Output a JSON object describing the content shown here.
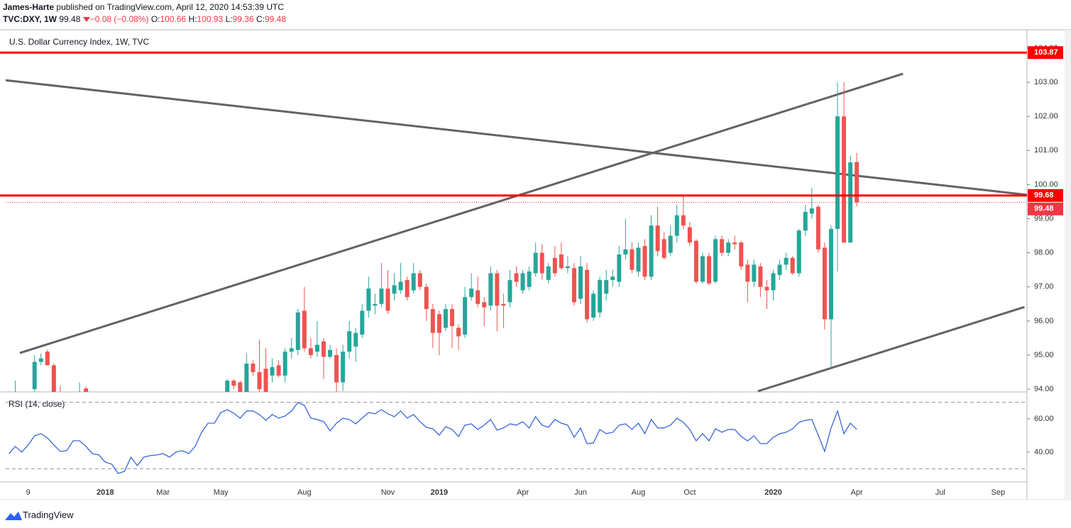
{
  "header": {
    "author": "James-Harte",
    "published": "published on TradingView.com, April 12, 2020 14:53:39 UTC",
    "symbol": "TVC:DXY, 1W",
    "change": "−0.08 (−0.08%)",
    "ohlc_labels": [
      "O:",
      "H:",
      "L:",
      "C:"
    ],
    "brand": "TradingView"
  },
  "chart_data": {
    "type": "candlestick",
    "title": "U.S. Dollar Currency Index, 1W, TVC",
    "categories": [
      null,
      null,
      null,
      "9",
      null,
      null,
      null,
      null,
      null,
      null,
      null,
      null,
      null,
      null,
      null,
      "2018",
      null,
      null,
      null,
      null,
      null,
      null,
      null,
      null,
      "Mar",
      null,
      null,
      null,
      null,
      null,
      null,
      null,
      null,
      "May",
      null,
      null,
      null,
      null,
      null,
      null,
      null,
      null,
      null,
      null,
      null,
      null,
      "Aug",
      null,
      null,
      null,
      null,
      null,
      null,
      null,
      null,
      null,
      null,
      null,
      null,
      "Nov",
      null,
      null,
      null,
      null,
      null,
      null,
      null,
      "2019",
      null,
      null,
      null,
      null,
      null,
      null,
      null,
      null,
      null,
      null,
      null,
      null,
      "Apr",
      null,
      null,
      null,
      null,
      null,
      null,
      null,
      null,
      "Jun",
      null,
      null,
      null,
      null,
      null,
      null,
      null,
      null,
      "Aug",
      null,
      null,
      null,
      null,
      null,
      null,
      null,
      "Oct",
      null,
      null,
      null,
      null,
      null,
      null,
      null,
      null,
      null,
      null,
      null,
      null,
      "2020",
      null,
      null,
      null,
      null,
      null,
      null,
      null,
      null,
      null,
      null,
      null,
      null,
      "Apr",
      null,
      null,
      null,
      null,
      null,
      null,
      null,
      null,
      null,
      null,
      null,
      null,
      "Jul",
      null,
      null,
      null,
      null,
      null,
      null,
      null,
      null,
      "Sep",
      null,
      null,
      null,
      null
    ],
    "open": [
      null,
      93.6,
      null,
      null,
      94.0,
      94.8,
      95.1,
      94.7,
      93.7,
      null,
      null,
      93.6,
      94.02,
      null,
      null,
      null,
      null,
      null,
      null,
      null,
      null,
      null,
      null,
      null,
      null,
      null,
      null,
      null,
      null,
      null,
      null,
      null,
      null,
      null,
      93.8,
      94.25,
      94.2,
      93.9,
      94.75,
      94.5,
      94.6,
      94.4,
      94.7,
      94.4,
      95.1,
      95.15,
      96.3,
      95.2,
      95.1,
      95.4,
      94.95,
      95.0,
      94.2,
      95.1,
      95.25,
      95.6,
      96.3,
      96.45,
      96.5,
      96.95,
      96.8,
      96.9,
      97.2,
      96.9,
      97.4,
      97.0,
      96.35,
      96.2,
      95.8,
      96.35,
      95.8,
      95.6,
      96.7,
      96.9,
      96.55,
      96.45,
      97.4,
      96.5,
      96.55,
      97.4,
      96.9,
      97.0,
      97.4,
      98.0,
      97.2,
      97.85,
      97.95,
      97.55,
      97.55,
      96.65,
      97.5,
      96.1,
      96.25,
      96.8,
      97.2,
      97.15,
      97.95,
      98.1,
      97.45,
      98.2,
      97.3,
      98.8,
      98.4,
      98.0,
      98.5,
      99.1,
      98.75,
      98.35,
      97.15,
      97.9,
      97.15,
      98.4,
      98.0,
      98.3,
      98.3,
      97.65,
      97.15,
      97.6,
      97.0,
      96.9,
      97.35,
      97.65,
      97.85,
      97.4,
      98.65,
      99.15,
      99.35,
      98.15,
      96.05,
      98.7,
      102.0,
      98.3,
      100.66,
      null,
      null,
      null,
      null,
      null,
      null,
      null,
      null,
      null,
      null,
      null,
      null,
      null,
      null,
      null,
      null,
      null,
      null,
      null,
      null,
      null,
      null,
      null,
      null,
      null,
      null
    ],
    "high": [
      null,
      94.25,
      null,
      null,
      95.0,
      95.05,
      95.16,
      94.75,
      94.1,
      null,
      null,
      94.2,
      94.08,
      null,
      null,
      null,
      null,
      null,
      null,
      null,
      null,
      null,
      null,
      null,
      null,
      null,
      null,
      null,
      null,
      null,
      null,
      null,
      null,
      null,
      94.3,
      94.3,
      94.25,
      95.05,
      94.85,
      95.45,
      95.2,
      94.9,
      94.85,
      95.2,
      95.5,
      96.35,
      97.0,
      95.5,
      96.0,
      95.5,
      95.3,
      95.2,
      95.3,
      96.0,
      95.8,
      96.5,
      97.3,
      96.8,
      97.7,
      97.5,
      97.4,
      97.7,
      97.3,
      97.7,
      97.5,
      97.1,
      96.5,
      96.3,
      96.5,
      96.5,
      95.9,
      97.0,
      97.4,
      97.3,
      96.7,
      97.6,
      97.5,
      96.8,
      97.5,
      97.6,
      97.5,
      97.6,
      98.3,
      98.25,
      97.7,
      98.2,
      98.3,
      97.9,
      97.7,
      97.9,
      97.7,
      96.9,
      97.3,
      97.5,
      97.5,
      98.2,
      99.0,
      98.3,
      98.3,
      98.4,
      99.1,
      99.35,
      98.6,
      98.8,
      99.4,
      99.7,
      98.9,
      98.4,
      98.0,
      98.0,
      98.5,
      98.5,
      98.4,
      98.5,
      98.35,
      97.8,
      97.8,
      97.7,
      97.2,
      97.5,
      97.8,
      98.0,
      97.9,
      98.7,
      99.4,
      99.9,
      99.4,
      98.3,
      98.8,
      103.0,
      103.0,
      100.85,
      100.93,
      null,
      null,
      null,
      null,
      null,
      null,
      null,
      null,
      null,
      null,
      null,
      null,
      null,
      null,
      null,
      null,
      null,
      null,
      null,
      null,
      null,
      null,
      null,
      null,
      null,
      null
    ],
    "low": [
      null,
      93.3,
      null,
      null,
      93.7,
      94.7,
      94.7,
      93.6,
      93.2,
      null,
      null,
      93.3,
      93.5,
      null,
      null,
      null,
      null,
      null,
      null,
      null,
      null,
      null,
      null,
      null,
      null,
      null,
      null,
      null,
      null,
      null,
      null,
      null,
      null,
      null,
      93.5,
      94.0,
      93.5,
      93.8,
      94.4,
      93.8,
      93.8,
      94.2,
      94.35,
      94.2,
      94.9,
      95.0,
      95.1,
      94.9,
      94.95,
      94.3,
      94.9,
      93.9,
      93.95,
      94.9,
      94.8,
      95.5,
      96.1,
      96.2,
      96.4,
      96.2,
      96.6,
      96.8,
      96.6,
      96.8,
      96.9,
      96.0,
      95.2,
      95.0,
      95.7,
      95.2,
      95.15,
      95.5,
      96.6,
      96.4,
      95.85,
      96.3,
      95.7,
      95.8,
      96.4,
      97.0,
      96.8,
      96.9,
      97.3,
      97.2,
      97.1,
      97.3,
      97.5,
      97.4,
      96.45,
      96.5,
      95.95,
      96.0,
      96.1,
      96.6,
      97.0,
      97.0,
      97.8,
      97.4,
      97.3,
      97.2,
      97.2,
      97.9,
      97.8,
      97.9,
      98.3,
      98.7,
      98.2,
      97.1,
      97.1,
      97.05,
      97.1,
      97.9,
      97.9,
      98.1,
      97.5,
      96.55,
      97.0,
      96.7,
      96.35,
      96.6,
      97.2,
      97.5,
      97.35,
      97.3,
      98.5,
      99.0,
      98.0,
      95.75,
      94.65,
      97.45,
      98.3,
      98.3,
      99.36,
      null,
      null,
      null,
      null,
      null,
      null,
      null,
      null,
      null,
      null,
      null,
      null,
      null,
      null,
      null,
      null,
      null,
      null,
      null,
      null,
      null,
      null,
      null,
      null,
      null,
      null
    ],
    "close": [
      null,
      93.9,
      null,
      null,
      94.8,
      94.9,
      94.7,
      93.7,
      93.5,
      null,
      null,
      93.8,
      93.9,
      null,
      null,
      null,
      null,
      null,
      null,
      null,
      null,
      null,
      null,
      null,
      null,
      null,
      null,
      null,
      null,
      null,
      null,
      null,
      null,
      null,
      94.25,
      94.1,
      93.6,
      94.75,
      94.5,
      94.0,
      93.9,
      94.65,
      94.4,
      95.1,
      95.2,
      96.25,
      95.2,
      95.0,
      95.3,
      94.95,
      95.15,
      94.2,
      95.1,
      95.7,
      95.65,
      96.3,
      96.95,
      96.5,
      96.95,
      96.3,
      97.05,
      97.15,
      96.7,
      97.4,
      97.0,
      96.35,
      95.65,
      95.65,
      96.35,
      95.85,
      95.55,
      96.7,
      96.95,
      96.5,
      96.4,
      97.4,
      96.45,
      96.45,
      97.2,
      97.15,
      97.4,
      97.45,
      98.0,
      97.4,
      97.6,
      97.4,
      97.55,
      97.6,
      96.55,
      97.6,
      96.05,
      96.8,
      97.2,
      97.2,
      97.3,
      97.95,
      98.1,
      97.5,
      98.15,
      97.3,
      98.8,
      98.05,
      97.85,
      98.5,
      99.1,
      98.8,
      98.3,
      97.15,
      97.9,
      97.1,
      98.4,
      98.0,
      98.3,
      98.25,
      97.6,
      97.15,
      97.65,
      97.0,
      96.9,
      97.4,
      97.65,
      97.85,
      97.4,
      98.65,
      99.2,
      99.3,
      98.1,
      96.05,
      98.7,
      102.0,
      98.3,
      100.65,
      99.48,
      null,
      null,
      null,
      null,
      null,
      null,
      null,
      null,
      null,
      null,
      null,
      null,
      null,
      null,
      null,
      null,
      null,
      null,
      null,
      null,
      null,
      null,
      null,
      null,
      null,
      null
    ],
    "up_color": "#26a69a",
    "down_color": "#ef5350",
    "ylim": [
      93.94,
      104.54
    ],
    "yticks": [
      {
        "value": 94,
        "label": "94.00"
      },
      {
        "value": 95,
        "label": "95.00"
      },
      {
        "value": 96,
        "label": "96.00"
      },
      {
        "value": 97,
        "label": "97.00"
      },
      {
        "value": 98,
        "label": "98.00"
      },
      {
        "value": 99,
        "label": "99.00"
      },
      {
        "value": 100,
        "label": "100.00"
      },
      {
        "value": 101,
        "label": "101.00"
      },
      {
        "value": 102,
        "label": "102.00"
      },
      {
        "value": 103,
        "label": "103.00"
      },
      {
        "value": 104,
        "label": "104.00"
      }
    ],
    "grid": false,
    "levels": [
      {
        "value": 103.87,
        "color": "#ff0000"
      },
      {
        "value": 99.68,
        "color": "#ff0000"
      }
    ],
    "last_price_color": "#f23645",
    "trend_lines": [
      {
        "x": [
          -0.5,
          158.5
        ],
        "y": [
          103.06,
          99.7
        ],
        "color": "#636363"
      },
      {
        "x": [
          1.7,
          139.2
        ],
        "y": [
          95.06,
          103.25
        ],
        "color": "#636363"
      },
      {
        "x": [
          116.6,
          158.1
        ],
        "y": [
          93.94,
          96.41
        ],
        "color": "#636363"
      }
    ],
    "rsi": {
      "name": "RSI (14, close)",
      "color": "#2a5bd7",
      "ylim": [
        22.1,
        75.3
      ],
      "yticks": [
        {
          "value": 40,
          "label": "40.00"
        },
        {
          "value": 60,
          "label": "60.00"
        }
      ],
      "bands": [
        30,
        70
      ],
      "values": [
        39.1,
        43.4,
        40.0,
        44.3,
        49.8,
        51.1,
        48.5,
        44.3,
        40.4,
        40.9,
        46.8,
        46.8,
        43.4,
        39.1,
        38.3,
        34.0,
        32.8,
        27.2,
        28.5,
        37.0,
        31.9,
        37.0,
        37.9,
        38.3,
        39.1,
        37.0,
        40.0,
        40.9,
        39.1,
        43.4,
        51.9,
        57.4,
        57.4,
        63.8,
        65.5,
        63.4,
        60.4,
        64.7,
        64.7,
        62.6,
        59.1,
        62.6,
        60.4,
        61.7,
        64.7,
        69.8,
        68.1,
        60.4,
        59.6,
        58.3,
        52.8,
        57.4,
        60.4,
        59.6,
        57.0,
        60.4,
        63.8,
        63.0,
        65.5,
        63.0,
        61.3,
        64.7,
        60.4,
        62.6,
        58.3,
        54.9,
        54.0,
        50.2,
        55.3,
        53.6,
        49.4,
        56.2,
        57.0,
        53.6,
        56.2,
        59.6,
        53.2,
        54.5,
        57.0,
        56.2,
        58.3,
        54.5,
        61.3,
        56.2,
        54.9,
        59.6,
        57.4,
        56.2,
        48.9,
        54.5,
        45.1,
        45.5,
        53.6,
        51.1,
        51.9,
        56.2,
        57.0,
        53.6,
        57.4,
        51.1,
        59.6,
        54.5,
        54.5,
        56.2,
        60.4,
        57.9,
        53.6,
        46.8,
        51.1,
        46.8,
        54.0,
        51.9,
        53.6,
        53.6,
        49.4,
        46.8,
        49.8,
        45.1,
        45.1,
        48.9,
        51.1,
        51.9,
        54.0,
        57.9,
        59.1,
        59.6,
        50.2,
        40.4,
        54.5,
        64.7,
        51.1,
        57.4,
        53.6,
        null,
        null,
        null,
        null,
        null,
        null,
        null,
        null,
        null,
        null,
        null,
        null,
        null,
        null,
        null,
        null,
        null,
        null,
        null,
        null,
        null,
        null,
        null,
        null,
        null,
        null
      ]
    }
  }
}
